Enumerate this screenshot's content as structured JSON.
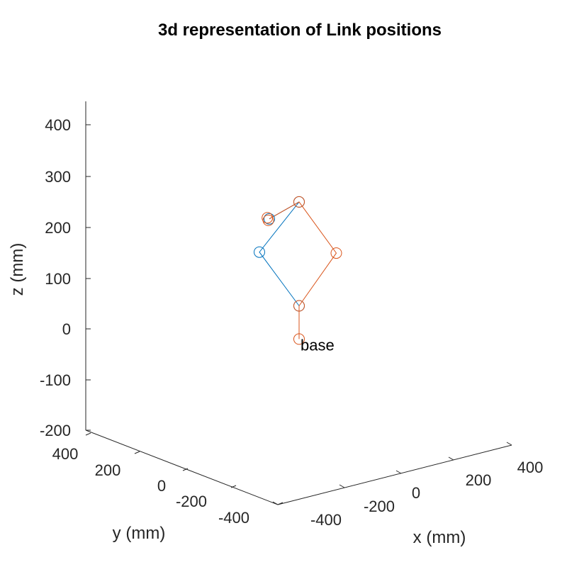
{
  "chart_data": {
    "type": "line",
    "title": "3d representation of Link positions",
    "xlabel": "x (mm)",
    "ylabel": "y (mm)",
    "zlabel": "z (mm)",
    "xticks": [
      "-400",
      "-200",
      "0",
      "200",
      "400"
    ],
    "yticks": [
      "400",
      "200",
      "0",
      "-200",
      "-400"
    ],
    "zticks": [
      "400",
      "300",
      "200",
      "100",
      "0",
      "-100",
      "-200"
    ],
    "zlim": [
      -200,
      450
    ],
    "grid": false,
    "series": [
      {
        "color": "#0072BD",
        "points_xz": [
          [
            0,
            45
          ],
          [
            -80,
            150
          ],
          [
            0,
            248
          ],
          [
            -60,
            215
          ]
        ]
      },
      {
        "color": "#D95319",
        "points_xz": [
          [
            0,
            -20
          ],
          [
            0,
            45
          ],
          [
            75,
            148
          ],
          [
            0,
            248
          ],
          [
            -60,
            215
          ]
        ],
        "markers_xz": [
          [
            0,
            -20
          ],
          [
            0,
            45
          ],
          [
            75,
            148
          ],
          [
            0,
            248
          ],
          [
            -62,
            212
          ],
          [
            -64,
            217
          ]
        ]
      }
    ],
    "annotations": [
      {
        "text": "base",
        "x": 0,
        "z": -20
      }
    ]
  }
}
